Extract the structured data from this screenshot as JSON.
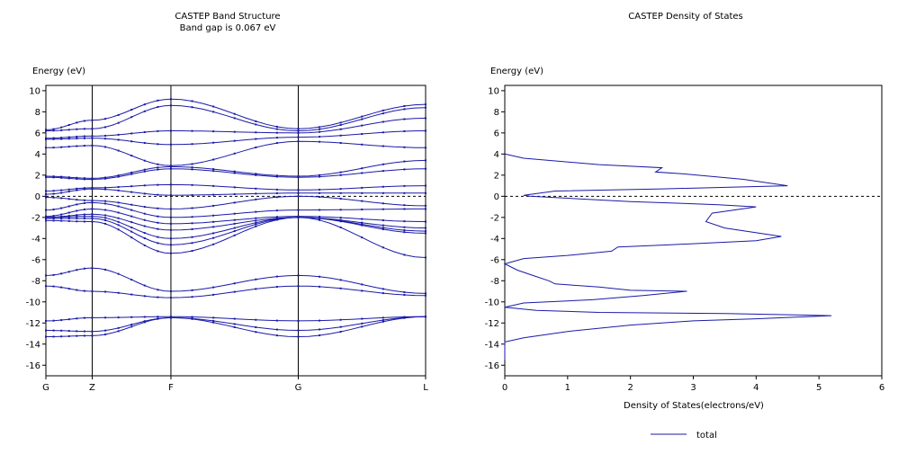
{
  "colors": {
    "series": "#1a1aa8",
    "axis": "#000000",
    "fermi_line": "#000000"
  },
  "chart_data": [
    {
      "type": "line",
      "title": "CASTEP Band Structure",
      "subtitle": "Band gap is 0.067 eV",
      "ylabel": "Energy (eV)",
      "xlabel": "",
      "ylim": [
        -17,
        10.5
      ],
      "yticks": [
        10,
        8,
        6,
        4,
        2,
        0,
        -2,
        -4,
        -6,
        -8,
        -10,
        -12,
        -14,
        -16
      ],
      "kpoints": [
        "G",
        "Z",
        "F",
        "G",
        "L"
      ],
      "kpath": [
        0,
        1,
        2.7,
        5.45,
        8.2
      ],
      "fermi_level": 0,
      "grid": "vertical lines at k-points",
      "bands": [
        {
          "x": [
            0,
            1,
            2.7,
            5.45,
            8.2
          ],
          "y": [
            -13.3,
            -13.2,
            -11.5,
            -13.3,
            -11.4
          ]
        },
        {
          "x": [
            0,
            1,
            2.7,
            5.45,
            8.2
          ],
          "y": [
            -12.7,
            -12.8,
            -11.5,
            -12.7,
            -11.4
          ]
        },
        {
          "x": [
            0,
            1,
            2.7,
            5.45,
            8.2
          ],
          "y": [
            -11.8,
            -11.5,
            -11.4,
            -11.8,
            -11.4
          ]
        },
        {
          "x": [
            0,
            1,
            2.7,
            5.45,
            8.2
          ],
          "y": [
            -8.5,
            -9.0,
            -9.6,
            -8.5,
            -9.4
          ]
        },
        {
          "x": [
            0,
            1,
            2.7,
            5.45,
            8.2
          ],
          "y": [
            -7.5,
            -6.8,
            -9.0,
            -7.5,
            -9.2
          ]
        },
        {
          "x": [
            0,
            1,
            2.7,
            5.45,
            8.2
          ],
          "y": [
            -2.3,
            -2.4,
            -5.4,
            -2.0,
            -5.8
          ]
        },
        {
          "x": [
            0,
            1,
            2.7,
            5.45,
            8.2
          ],
          "y": [
            -2.1,
            -2.1,
            -4.6,
            -2.0,
            -3.5
          ]
        },
        {
          "x": [
            0,
            1,
            2.7,
            5.45,
            8.2
          ],
          "y": [
            -2.0,
            -1.9,
            -4.0,
            -2.0,
            -3.3
          ]
        },
        {
          "x": [
            0,
            1,
            2.7,
            5.45,
            8.2
          ],
          "y": [
            -2.0,
            -1.7,
            -3.2,
            -2.0,
            -3.0
          ]
        },
        {
          "x": [
            0,
            1,
            2.7,
            5.45,
            8.2
          ],
          "y": [
            -1.9,
            -1.2,
            -2.6,
            -1.9,
            -2.4
          ]
        },
        {
          "x": [
            0,
            1,
            2.7,
            5.45,
            8.2
          ],
          "y": [
            -1.3,
            -0.6,
            -2.0,
            -1.3,
            -1.2
          ]
        },
        {
          "x": [
            0,
            1,
            2.7,
            5.45,
            8.2
          ],
          "y": [
            -0.1,
            -0.4,
            -1.2,
            0.0,
            -0.9
          ]
        },
        {
          "x": [
            0,
            1,
            2.7,
            5.45,
            8.2
          ],
          "y": [
            0.2,
            0.7,
            0.1,
            0.3,
            0.3
          ]
        },
        {
          "x": [
            0,
            1,
            2.7,
            5.45,
            8.2
          ],
          "y": [
            0.5,
            0.8,
            1.1,
            0.6,
            1.0
          ]
        },
        {
          "x": [
            0,
            1,
            2.7,
            5.45,
            8.2
          ],
          "y": [
            1.8,
            1.6,
            2.6,
            1.8,
            2.6
          ]
        },
        {
          "x": [
            0,
            1,
            2.7,
            5.45,
            8.2
          ],
          "y": [
            1.9,
            1.7,
            2.8,
            1.9,
            3.4
          ]
        },
        {
          "x": [
            0,
            1,
            2.7,
            5.45,
            8.2
          ],
          "y": [
            4.6,
            4.8,
            2.9,
            5.2,
            4.6
          ]
        },
        {
          "x": [
            0,
            1,
            2.7,
            5.45,
            8.2
          ],
          "y": [
            5.4,
            5.5,
            4.9,
            5.6,
            6.2
          ]
        },
        {
          "x": [
            0,
            1,
            2.7,
            5.45,
            8.2
          ],
          "y": [
            5.5,
            5.7,
            6.2,
            6.0,
            7.4
          ]
        },
        {
          "x": [
            0,
            1,
            2.7,
            5.45,
            8.2
          ],
          "y": [
            6.2,
            6.4,
            8.6,
            6.2,
            8.4
          ]
        },
        {
          "x": [
            0,
            1,
            2.7,
            5.45,
            8.2
          ],
          "y": [
            6.3,
            7.2,
            9.2,
            6.4,
            8.7
          ]
        }
      ]
    },
    {
      "type": "line",
      "title": "CASTEP Density of States",
      "xlabel": "Density of States(electrons/eV)",
      "ylabel": "Energy (eV)",
      "xlim": [
        0,
        6
      ],
      "ylim": [
        -17,
        10.5
      ],
      "xticks": [
        0,
        1,
        2,
        3,
        4,
        5,
        6
      ],
      "yticks": [
        10,
        8,
        6,
        4,
        2,
        0,
        -2,
        -4,
        -6,
        -8,
        -10,
        -12,
        -14,
        -16
      ],
      "fermi_level": 0,
      "legend": "bottom-center",
      "series": [
        {
          "name": "total",
          "x": [
            0,
            0.3,
            1.5,
            2.5,
            2.4,
            2.9,
            3.8,
            4.5,
            2.5,
            0.8,
            0.3,
            0.4,
            2.0,
            3.4,
            4.0,
            3.3,
            3.2,
            3.5,
            4.4,
            4.0,
            2.6,
            1.8,
            1.7,
            1.0,
            0.3,
            0.0,
            0.2,
            0.5,
            0.7,
            0.8,
            1.5,
            2.0,
            2.9,
            2.2,
            1.4,
            0.3,
            0.0,
            0.5,
            1.5,
            3.5,
            5.2,
            4.0,
            3.0,
            2.0,
            1.0,
            0.3,
            0.0,
            0.0
          ],
          "y": [
            4.0,
            3.6,
            3.0,
            2.7,
            2.3,
            2.1,
            1.6,
            1.0,
            0.7,
            0.5,
            0.1,
            0.0,
            -0.5,
            -0.8,
            -1.0,
            -1.6,
            -2.4,
            -3.0,
            -3.8,
            -4.2,
            -4.6,
            -4.8,
            -5.2,
            -5.6,
            -5.9,
            -6.4,
            -7.0,
            -7.6,
            -8.0,
            -8.3,
            -8.6,
            -8.9,
            -9.0,
            -9.4,
            -9.8,
            -10.1,
            -10.5,
            -10.8,
            -11.0,
            -11.1,
            -11.3,
            -11.6,
            -11.8,
            -12.2,
            -12.8,
            -13.4,
            -13.8,
            -15.5
          ]
        }
      ]
    }
  ]
}
